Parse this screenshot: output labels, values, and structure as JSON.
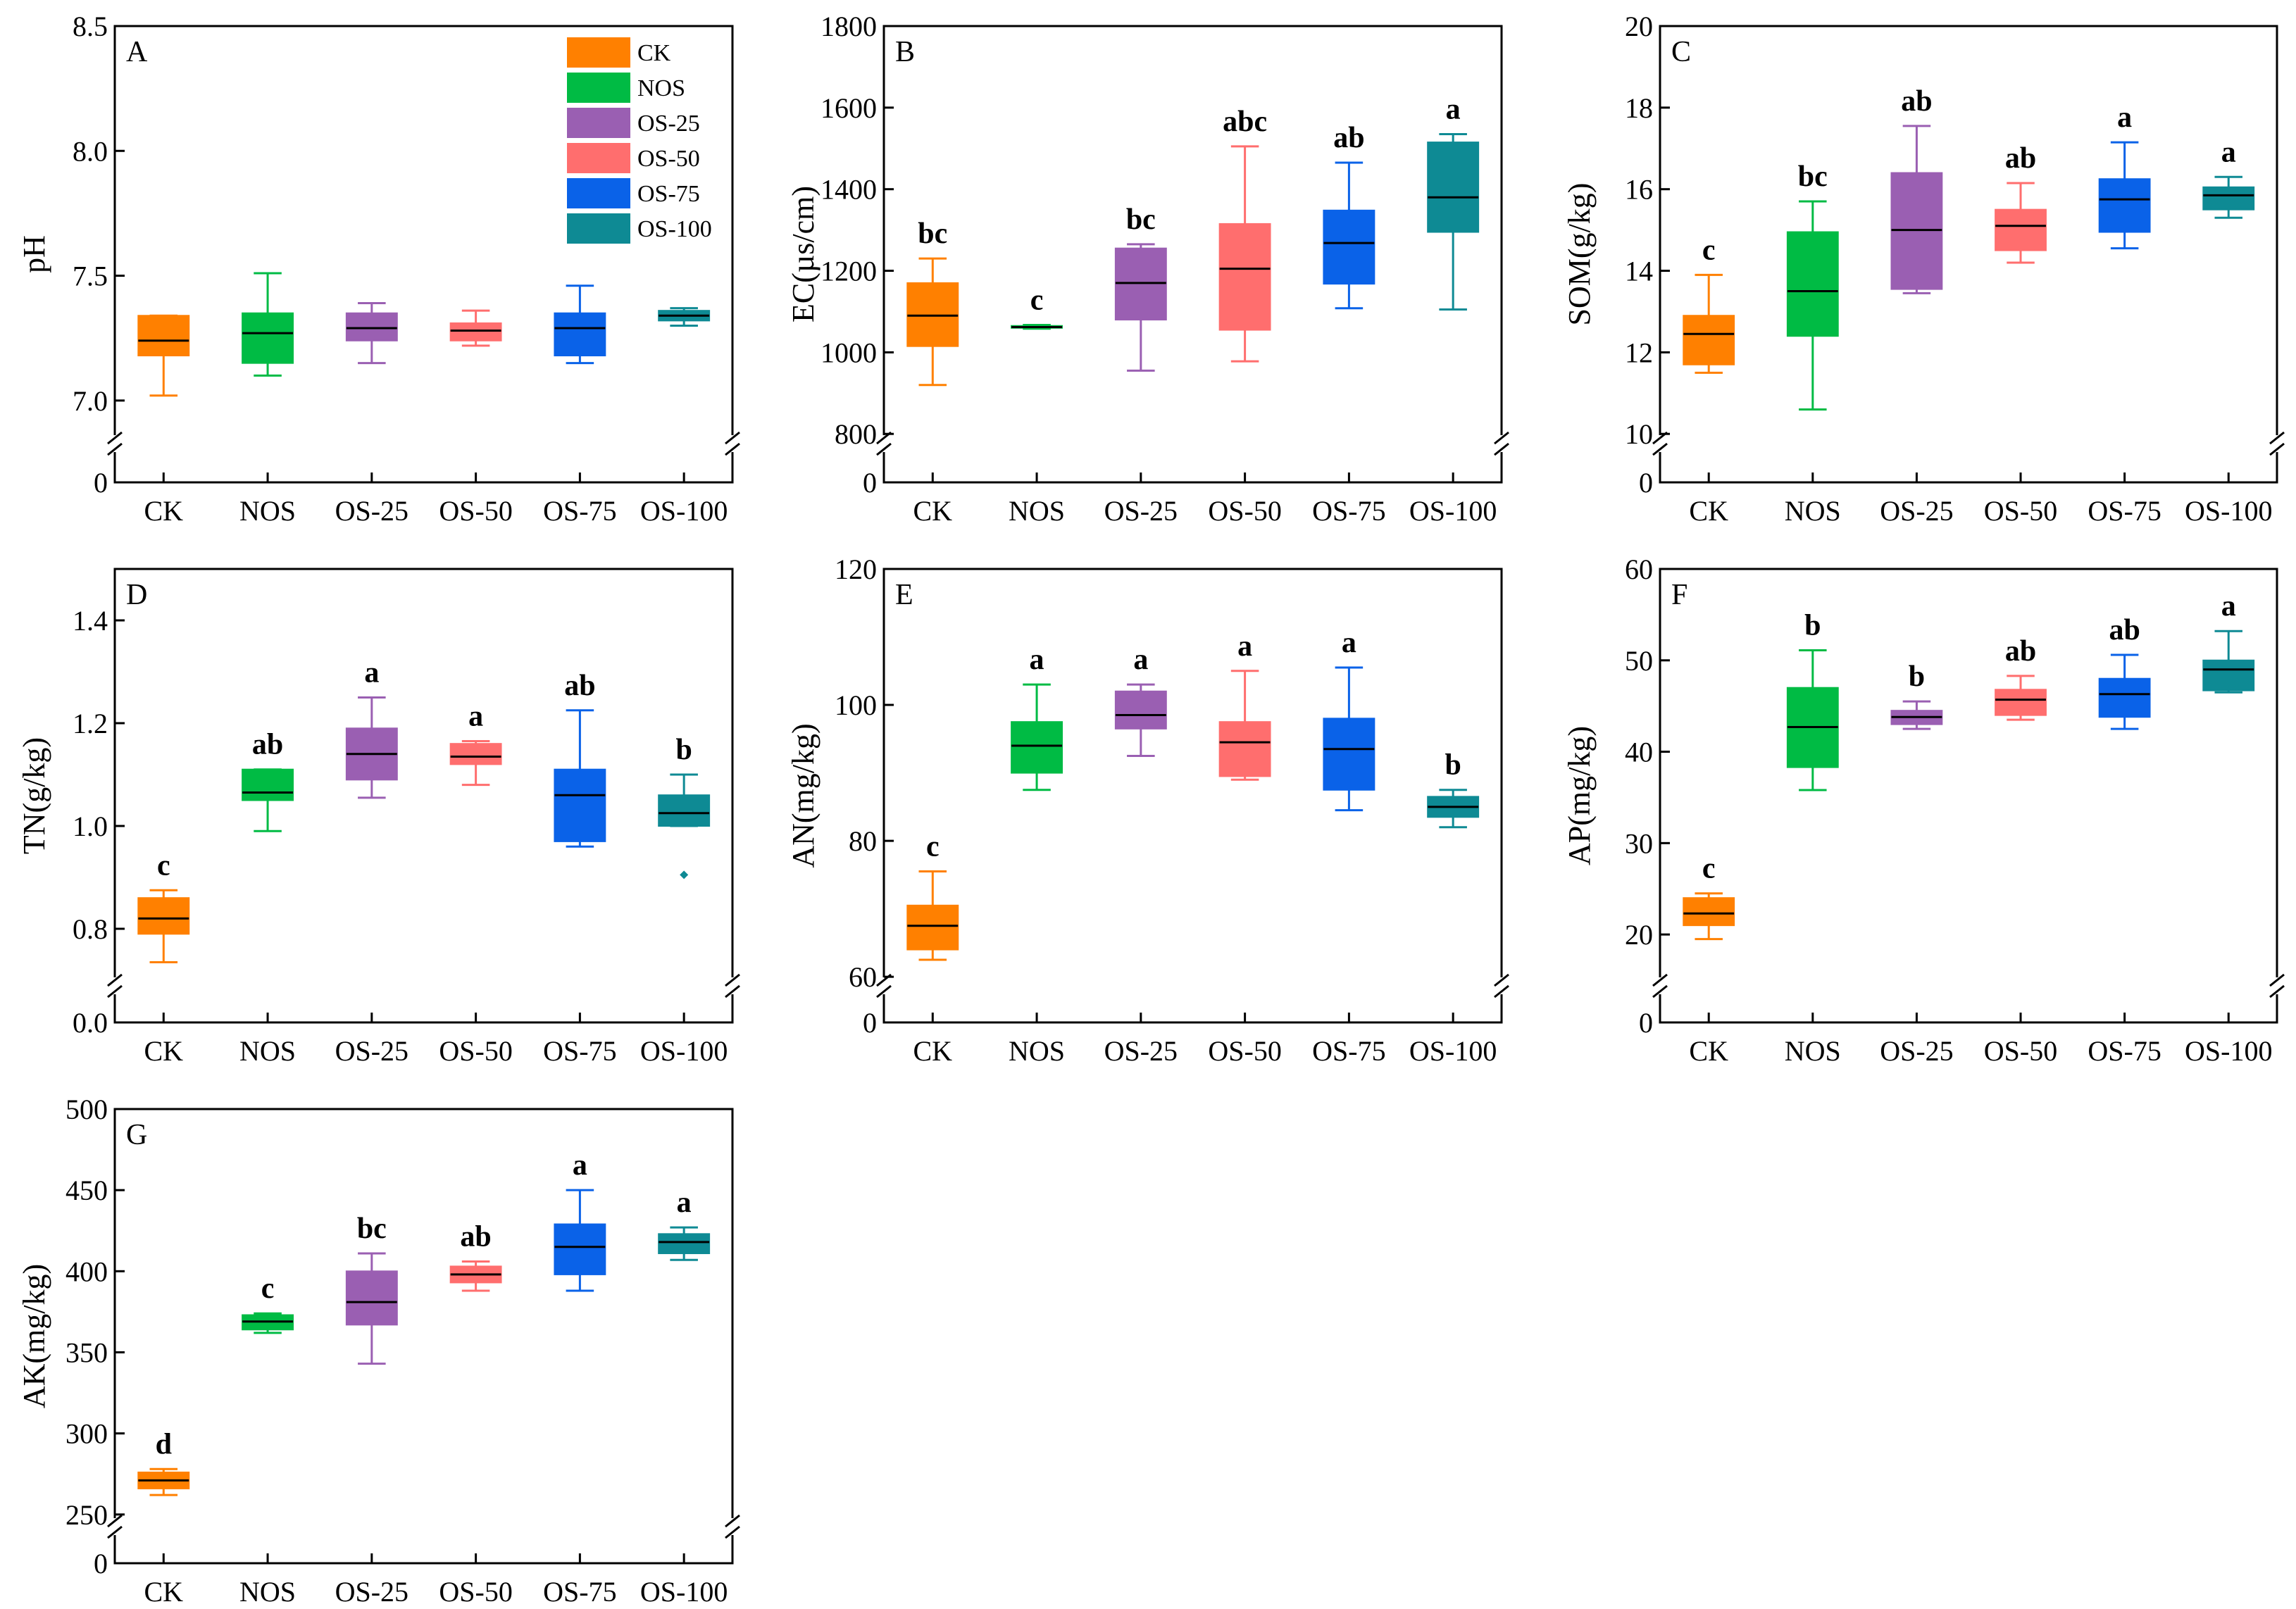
{
  "categories": [
    "CK",
    "NOS",
    "OS-25",
    "OS-50",
    "OS-75",
    "OS-100"
  ],
  "colors": {
    "CK": "#FF8000",
    "NOS": "#00BB44",
    "OS-25": "#9A5FB2",
    "OS-50": "#FF6E6E",
    "OS-75": "#0A62E8",
    "OS-100": "#0E8A94"
  },
  "legend": {
    "placement": "top-right of panel A",
    "entries": [
      "CK",
      "NOS",
      "OS-25",
      "OS-50",
      "OS-75",
      "OS-100"
    ]
  },
  "chart_data": [
    {
      "type": "box",
      "panel": "A",
      "ylabel": "pH",
      "yticks": [
        "7.0",
        "7.5",
        "8.0",
        "8.5"
      ],
      "ylim": [
        6.85,
        8.5
      ],
      "break": true,
      "break_base_label": "0",
      "boxes": [
        {
          "category": "CK",
          "whisker_low": 7.02,
          "q1": 7.18,
          "median": 7.24,
          "q3": 7.34,
          "whisker_high": 7.34,
          "outliers": []
        },
        {
          "category": "NOS",
          "whisker_low": 7.1,
          "q1": 7.15,
          "median": 7.27,
          "q3": 7.35,
          "whisker_high": 7.51,
          "outliers": []
        },
        {
          "category": "OS-25",
          "whisker_low": 7.15,
          "q1": 7.24,
          "median": 7.29,
          "q3": 7.35,
          "whisker_high": 7.39,
          "outliers": []
        },
        {
          "category": "OS-50",
          "whisker_low": 7.22,
          "q1": 7.24,
          "median": 7.28,
          "q3": 7.31,
          "whisker_high": 7.36,
          "outliers": []
        },
        {
          "category": "OS-75",
          "whisker_low": 7.15,
          "q1": 7.18,
          "median": 7.29,
          "q3": 7.35,
          "whisker_high": 7.46,
          "outliers": []
        },
        {
          "category": "OS-100",
          "whisker_low": 7.3,
          "q1": 7.32,
          "median": 7.34,
          "q3": 7.36,
          "whisker_high": 7.37,
          "outliers": []
        }
      ]
    },
    {
      "type": "box",
      "panel": "B",
      "ylabel": "EC(µs/cm)",
      "yticks": [
        "800",
        "1000",
        "1200",
        "1400",
        "1600",
        "1800"
      ],
      "ylim": [
        790,
        1800
      ],
      "break": true,
      "break_base_label": "0",
      "boxes": [
        {
          "category": "CK",
          "whisker_low": 920,
          "q1": 1015,
          "median": 1090,
          "q3": 1170,
          "whisker_high": 1230,
          "letter": "bc",
          "outliers": []
        },
        {
          "category": "NOS",
          "whisker_low": 1058,
          "q1": 1060,
          "median": 1062,
          "q3": 1065,
          "whisker_high": 1067,
          "letter": "c",
          "outliers": []
        },
        {
          "category": "OS-25",
          "whisker_low": 955,
          "q1": 1080,
          "median": 1170,
          "q3": 1255,
          "whisker_high": 1265,
          "letter": "bc",
          "outliers": []
        },
        {
          "category": "OS-50",
          "whisker_low": 978,
          "q1": 1055,
          "median": 1205,
          "q3": 1315,
          "whisker_high": 1505,
          "letter": "abc",
          "outliers": []
        },
        {
          "category": "OS-75",
          "whisker_low": 1108,
          "q1": 1168,
          "median": 1268,
          "q3": 1348,
          "whisker_high": 1465,
          "letter": "ab",
          "outliers": []
        },
        {
          "category": "OS-100",
          "whisker_low": 1105,
          "q1": 1295,
          "median": 1380,
          "q3": 1515,
          "whisker_high": 1535,
          "letter": "a",
          "outliers": []
        }
      ]
    },
    {
      "type": "box",
      "panel": "C",
      "ylabel": "SOM(g/kg)",
      "yticks": [
        "10",
        "12",
        "14",
        "16",
        "18",
        "20"
      ],
      "ylim": [
        9.9,
        20
      ],
      "break": true,
      "break_base_label": "0",
      "boxes": [
        {
          "category": "CK",
          "whisker_low": 11.5,
          "q1": 11.7,
          "median": 12.45,
          "q3": 12.9,
          "whisker_high": 13.9,
          "letter": "c",
          "outliers": []
        },
        {
          "category": "NOS",
          "whisker_low": 10.6,
          "q1": 12.4,
          "median": 13.5,
          "q3": 14.95,
          "whisker_high": 15.7,
          "letter": "bc",
          "outliers": []
        },
        {
          "category": "OS-25",
          "whisker_low": 13.45,
          "q1": 13.55,
          "median": 15.0,
          "q3": 16.4,
          "whisker_high": 17.55,
          "letter": "ab",
          "outliers": []
        },
        {
          "category": "OS-50",
          "whisker_low": 14.2,
          "q1": 14.5,
          "median": 15.1,
          "q3": 15.5,
          "whisker_high": 16.15,
          "letter": "ab",
          "outliers": []
        },
        {
          "category": "OS-75",
          "whisker_low": 14.55,
          "q1": 14.95,
          "median": 15.75,
          "q3": 16.25,
          "whisker_high": 17.15,
          "letter": "a",
          "outliers": []
        },
        {
          "category": "OS-100",
          "whisker_low": 15.3,
          "q1": 15.5,
          "median": 15.85,
          "q3": 16.05,
          "whisker_high": 16.3,
          "letter": "a",
          "outliers": []
        }
      ]
    },
    {
      "type": "box",
      "panel": "D",
      "ylabel": "TN(g/kg)",
      "yticks": [
        "0.8",
        "1.0",
        "1.2",
        "1.4"
      ],
      "ylim": [
        0.7,
        1.5
      ],
      "break": true,
      "break_base_label": "0.0",
      "boxes": [
        {
          "category": "CK",
          "whisker_low": 0.735,
          "q1": 0.79,
          "median": 0.82,
          "q3": 0.86,
          "whisker_high": 0.875,
          "letter": "c",
          "outliers": []
        },
        {
          "category": "NOS",
          "whisker_low": 0.99,
          "q1": 1.05,
          "median": 1.065,
          "q3": 1.11,
          "whisker_high": 1.11,
          "letter": "ab",
          "outliers": []
        },
        {
          "category": "OS-25",
          "whisker_low": 1.055,
          "q1": 1.09,
          "median": 1.14,
          "q3": 1.19,
          "whisker_high": 1.25,
          "letter": "a",
          "outliers": []
        },
        {
          "category": "OS-50",
          "whisker_low": 1.08,
          "q1": 1.12,
          "median": 1.135,
          "q3": 1.16,
          "whisker_high": 1.165,
          "letter": "a",
          "outliers": []
        },
        {
          "category": "OS-75",
          "whisker_low": 0.96,
          "q1": 0.97,
          "median": 1.06,
          "q3": 1.11,
          "whisker_high": 1.225,
          "letter": "ab",
          "outliers": []
        },
        {
          "category": "OS-100",
          "whisker_low": 1.0,
          "q1": 1.0,
          "median": 1.025,
          "q3": 1.06,
          "whisker_high": 1.1,
          "letter": "b",
          "outliers": [
            0.905
          ]
        }
      ]
    },
    {
      "type": "box",
      "panel": "E",
      "ylabel": "AN(mg/kg)",
      "yticks": [
        "60",
        "80",
        "100",
        "120"
      ],
      "ylim": [
        59.5,
        120
      ],
      "break": true,
      "break_base_label": "0",
      "boxes": [
        {
          "category": "CK",
          "whisker_low": 62.5,
          "q1": 64.0,
          "median": 67.5,
          "q3": 70.5,
          "whisker_high": 75.5,
          "letter": "c",
          "outliers": []
        },
        {
          "category": "NOS",
          "whisker_low": 87.5,
          "q1": 90.0,
          "median": 94.0,
          "q3": 97.5,
          "whisker_high": 103.0,
          "letter": "a",
          "outliers": []
        },
        {
          "category": "OS-25",
          "whisker_low": 92.5,
          "q1": 96.5,
          "median": 98.5,
          "q3": 102.0,
          "whisker_high": 103.0,
          "letter": "a",
          "outliers": []
        },
        {
          "category": "OS-50",
          "whisker_low": 89.0,
          "q1": 89.5,
          "median": 94.5,
          "q3": 97.5,
          "whisker_high": 105.0,
          "letter": "a",
          "outliers": []
        },
        {
          "category": "OS-75",
          "whisker_low": 84.5,
          "q1": 87.5,
          "median": 93.5,
          "q3": 98.0,
          "whisker_high": 105.5,
          "letter": "a",
          "outliers": []
        },
        {
          "category": "OS-100",
          "whisker_low": 82.0,
          "q1": 83.5,
          "median": 85.0,
          "q3": 86.5,
          "whisker_high": 87.5,
          "letter": "b",
          "outliers": []
        }
      ]
    },
    {
      "type": "box",
      "panel": "F",
      "ylabel": "AP(mg/kg)",
      "yticks": [
        "20",
        "30",
        "40",
        "50",
        "60"
      ],
      "ylim": [
        15,
        60
      ],
      "break": true,
      "break_base_label": "0",
      "boxes": [
        {
          "category": "CK",
          "whisker_low": 19.5,
          "q1": 21.0,
          "median": 22.3,
          "q3": 24.0,
          "whisker_high": 24.5,
          "letter": "c",
          "outliers": []
        },
        {
          "category": "NOS",
          "whisker_low": 35.8,
          "q1": 38.3,
          "median": 42.7,
          "q3": 47.0,
          "whisker_high": 51.1,
          "letter": "b",
          "outliers": []
        },
        {
          "category": "OS-25",
          "whisker_low": 42.5,
          "q1": 43.0,
          "median": 43.8,
          "q3": 44.5,
          "whisker_high": 45.5,
          "letter": "b",
          "outliers": []
        },
        {
          "category": "OS-50",
          "whisker_low": 43.5,
          "q1": 44.0,
          "median": 45.7,
          "q3": 46.8,
          "whisker_high": 48.3,
          "letter": "ab",
          "outliers": []
        },
        {
          "category": "OS-75",
          "whisker_low": 42.5,
          "q1": 43.8,
          "median": 46.3,
          "q3": 48.0,
          "whisker_high": 50.6,
          "letter": "ab",
          "outliers": []
        },
        {
          "category": "OS-100",
          "whisker_low": 46.5,
          "q1": 46.7,
          "median": 49.0,
          "q3": 50.0,
          "whisker_high": 53.2,
          "letter": "a",
          "outliers": []
        }
      ]
    },
    {
      "type": "box",
      "panel": "G",
      "ylabel": "AK(mg/kg)",
      "yticks": [
        "250",
        "300",
        "350",
        "400",
        "450",
        "500"
      ],
      "ylim": [
        246,
        500
      ],
      "break": true,
      "break_base_label": "0",
      "boxes": [
        {
          "category": "CK",
          "whisker_low": 262,
          "q1": 266,
          "median": 271,
          "q3": 276,
          "whisker_high": 278,
          "letter": "d",
          "outliers": []
        },
        {
          "category": "NOS",
          "whisker_low": 362,
          "q1": 364,
          "median": 369,
          "q3": 373,
          "whisker_high": 374,
          "letter": "c",
          "outliers": []
        },
        {
          "category": "OS-25",
          "whisker_low": 343,
          "q1": 367,
          "median": 381,
          "q3": 400,
          "whisker_high": 411,
          "letter": "bc",
          "outliers": []
        },
        {
          "category": "OS-50",
          "whisker_low": 388,
          "q1": 393,
          "median": 398,
          "q3": 403,
          "whisker_high": 406,
          "letter": "ab",
          "outliers": []
        },
        {
          "category": "OS-75",
          "whisker_low": 388,
          "q1": 398,
          "median": 415,
          "q3": 429,
          "whisker_high": 450,
          "letter": "a",
          "outliers": []
        },
        {
          "category": "OS-100",
          "whisker_low": 407,
          "q1": 411,
          "median": 418,
          "q3": 423,
          "whisker_high": 427,
          "letter": "a",
          "outliers": []
        }
      ]
    }
  ]
}
